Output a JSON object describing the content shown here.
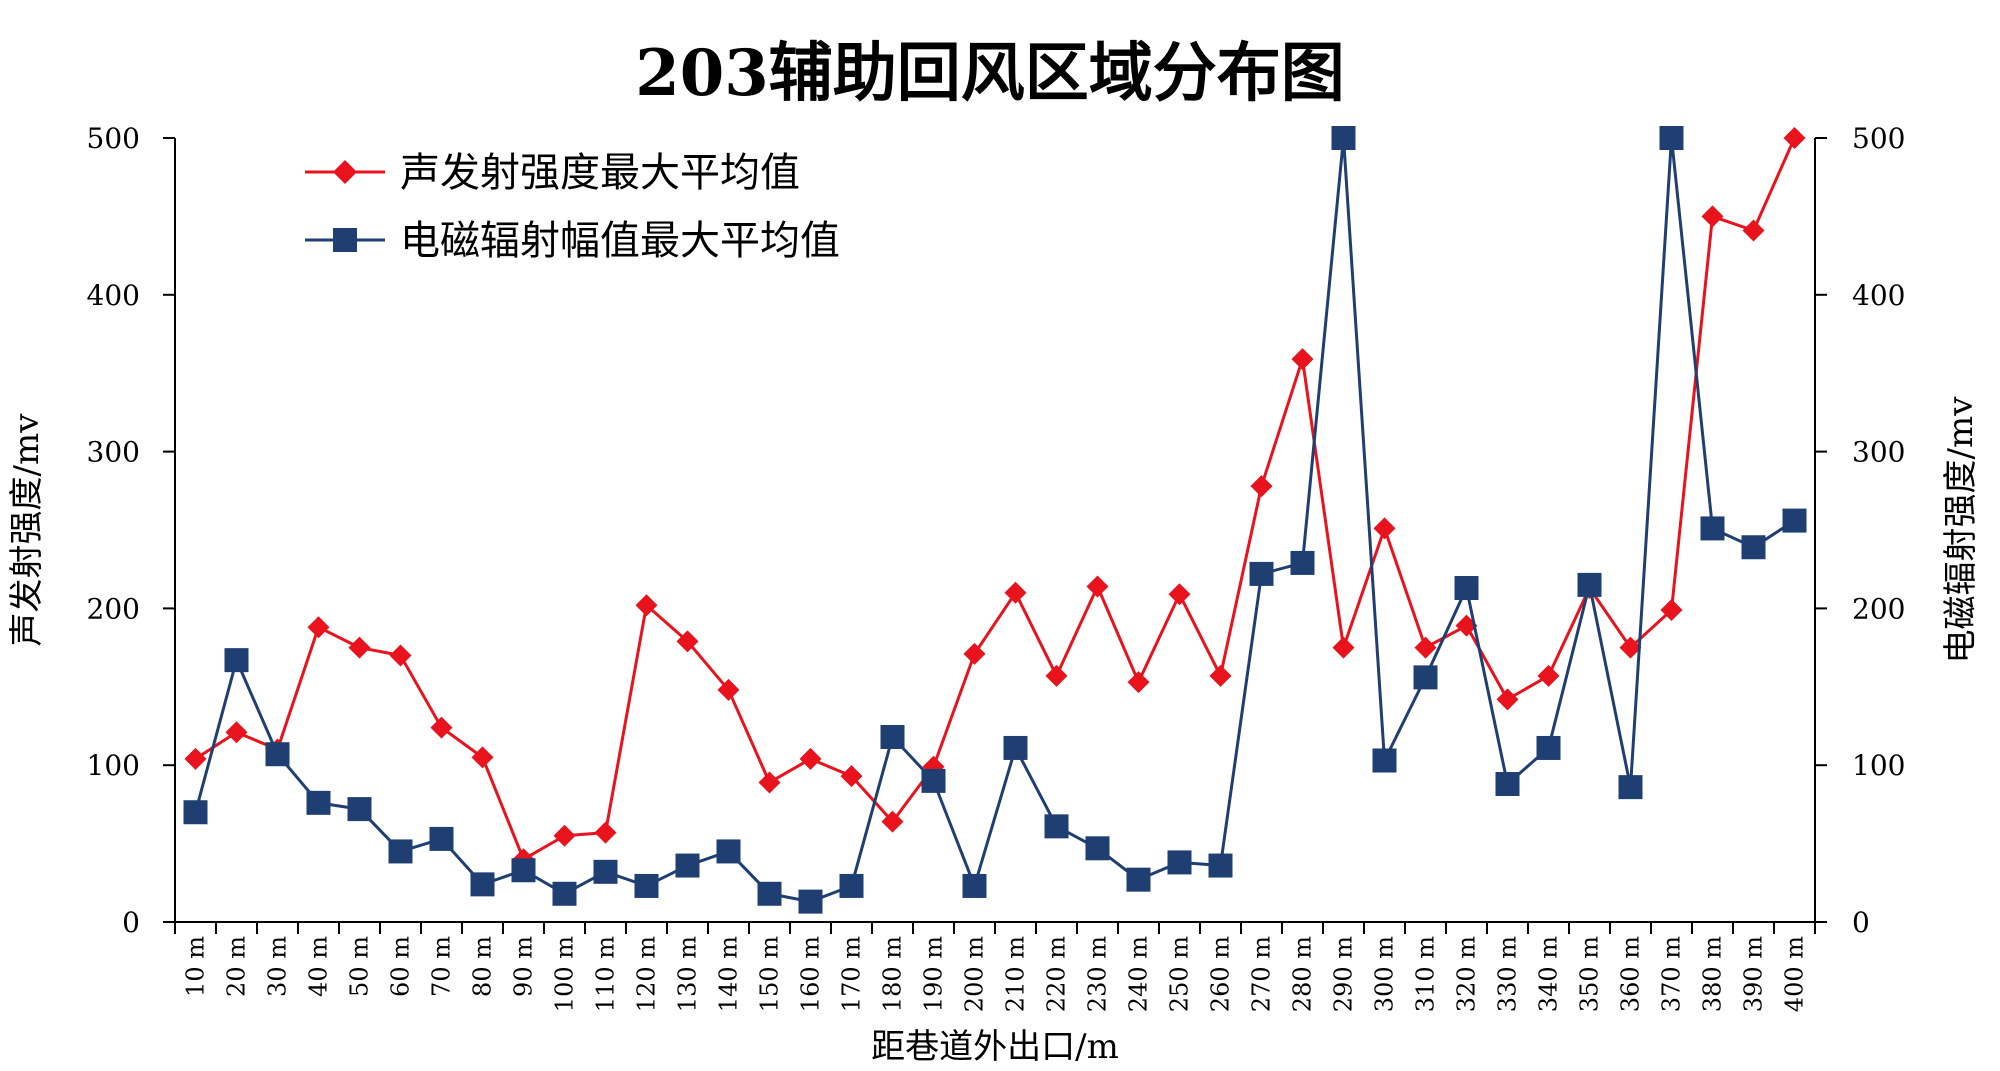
{
  "chart_data": {
    "type": "line",
    "title": "203辅助回风区域分布图",
    "xlabel": "距巷道外出口/m",
    "ylabel_left": "声发射强度/mv",
    "ylabel_right": "电磁辐射强度/mv",
    "ylim": [
      0,
      500
    ],
    "yticks": [
      "0",
      "100",
      "200",
      "300",
      "400",
      "500"
    ],
    "categories": [
      "10 m",
      "20 m",
      "30 m",
      "40 m",
      "50 m",
      "60 m",
      "70 m",
      "80 m",
      "90 m",
      "100 m",
      "110 m",
      "120 m",
      "130 m",
      "140 m",
      "150 m",
      "160 m",
      "170 m",
      "180 m",
      "190 m",
      "200 m",
      "210 m",
      "220 m",
      "230 m",
      "240 m",
      "250 m",
      "260 m",
      "270 m",
      "280 m",
      "290 m",
      "300 m",
      "310 m",
      "320 m",
      "330 m",
      "340 m",
      "350 m",
      "360 m",
      "370 m",
      "380 m",
      "390 m",
      "400 m"
    ],
    "series": [
      {
        "name": "声发射强度最大平均值",
        "color": "#e8131c",
        "marker": "diamond",
        "values": [
          104,
          121,
          110,
          188,
          175,
          170,
          124,
          105,
          40,
          55,
          57,
          202,
          179,
          148,
          89,
          104,
          93,
          64,
          99,
          171,
          210,
          157,
          214,
          153,
          209,
          157,
          278,
          359,
          175,
          251,
          175,
          189,
          142,
          157,
          213,
          175,
          199,
          450,
          441,
          500
        ]
      },
      {
        "name": "电磁辐射幅值最大平均值",
        "color": "#1f3f73",
        "marker": "square",
        "values": [
          70,
          167,
          107,
          76,
          72,
          45,
          53,
          24,
          33,
          18,
          32,
          23,
          36,
          45,
          18,
          13,
          23,
          118,
          90,
          23,
          111,
          61,
          47,
          27,
          38,
          36,
          222,
          229,
          500,
          103,
          156,
          213,
          88,
          111,
          215,
          86,
          500,
          251,
          239,
          256
        ]
      }
    ]
  }
}
